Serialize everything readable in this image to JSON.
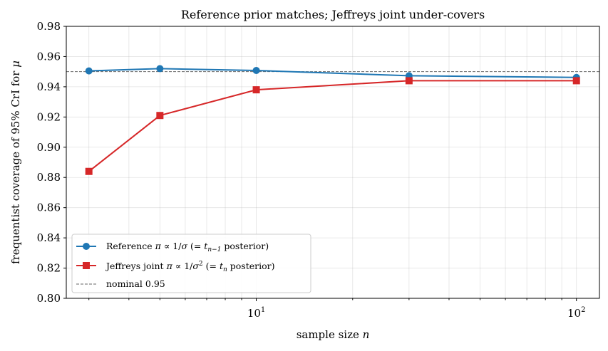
{
  "chart_data": {
    "type": "line",
    "title": "Reference prior matches; Jeffreys joint under-covers",
    "xlabel": "sample size n",
    "ylabel": "frequentist coverage of 95% CrI for μ",
    "xscale": "log",
    "xlim": [
      2.55,
      118
    ],
    "ylim": [
      0.8,
      0.98
    ],
    "x_ticks": [
      {
        "value": 10,
        "base": "10",
        "exp": "1"
      },
      {
        "value": 100,
        "base": "10",
        "exp": "2"
      }
    ],
    "y_ticks": [
      "0.80",
      "0.82",
      "0.84",
      "0.86",
      "0.88",
      "0.90",
      "0.92",
      "0.94",
      "0.96",
      "0.98"
    ],
    "grid": true,
    "legend_position": "lower-left",
    "series": [
      {
        "name": "Reference π∝1/σ (= t_{n−1} posterior)",
        "legend_label": "Reference π ∝ 1/σ (= tn−1 posterior)",
        "color": "#1f77b4",
        "marker": "circle",
        "x": [
          3,
          5,
          10,
          30,
          100
        ],
        "values": [
          0.9505,
          0.952,
          0.9508,
          0.9473,
          0.9462
        ]
      },
      {
        "name": "Jeffreys joint π∝1/σ² (= t_n posterior)",
        "legend_label": "Jeffreys joint π ∝ 1/σ² (= tn posterior)",
        "color": "#d62728",
        "marker": "square",
        "x": [
          3,
          5,
          10,
          30,
          100
        ],
        "values": [
          0.884,
          0.921,
          0.938,
          0.944,
          0.944
        ]
      }
    ],
    "reference_line": {
      "label": "nominal 0.95",
      "value": 0.95,
      "color": "#666666",
      "style": "dashed"
    }
  }
}
